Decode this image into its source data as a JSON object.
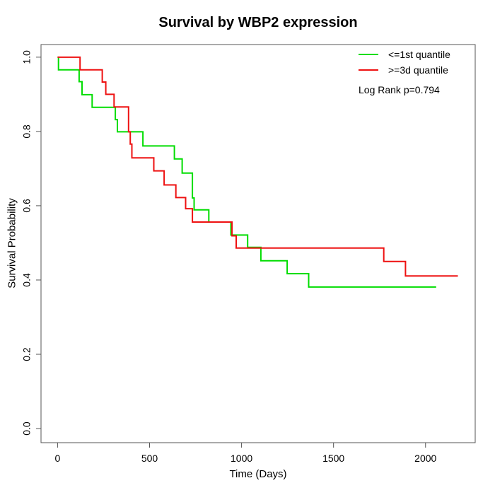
{
  "figure": {
    "background": "#ffffff",
    "axis_color": "#555555",
    "text_color": "#000000"
  },
  "chart_data": {
    "type": "line",
    "subtype": "kaplan-meier-step",
    "title": "Survival by WBP2 expression",
    "xlabel": "Time (Days)",
    "ylabel": "Survival Probability",
    "grid": false,
    "legend_position": "top-right",
    "annotation": "Log Rank p=0.794",
    "x_tick_values": [
      0,
      500,
      1000,
      1500,
      2000
    ],
    "x_tick_labels": [
      "0",
      "500",
      "1000",
      "1500",
      "2000"
    ],
    "y_tick_values": [
      0.0,
      0.2,
      0.4,
      0.6,
      0.8,
      1.0
    ],
    "y_tick_labels": [
      "0.0",
      "0.2",
      "0.4",
      "0.6",
      "0.8",
      "1.0"
    ],
    "xlim": [
      -90,
      2270
    ],
    "ylim": [
      -0.038,
      1.034
    ],
    "series": [
      {
        "name": "<=1st quantile",
        "color": "#00dd00",
        "start": [
          0,
          1.0
        ],
        "steps": [
          [
            5,
            0.966
          ],
          [
            117,
            0.934
          ],
          [
            133,
            0.899
          ],
          [
            188,
            0.865
          ],
          [
            314,
            0.832
          ],
          [
            325,
            0.799
          ],
          [
            464,
            0.761
          ],
          [
            635,
            0.726
          ],
          [
            677,
            0.688
          ],
          [
            733,
            0.621
          ],
          [
            742,
            0.589
          ],
          [
            822,
            0.556
          ],
          [
            942,
            0.521
          ],
          [
            1033,
            0.488
          ],
          [
            1105,
            0.452
          ],
          [
            1248,
            0.417
          ],
          [
            1365,
            0.381
          ]
        ],
        "end_time": 2058,
        "final_probability": 0.381
      },
      {
        "name": ">=3d quantile",
        "color": "#ee1111",
        "start": [
          0,
          1.0
        ],
        "steps": [
          [
            122,
            0.966
          ],
          [
            243,
            0.933
          ],
          [
            262,
            0.9
          ],
          [
            307,
            0.866
          ],
          [
            386,
            0.799
          ],
          [
            395,
            0.766
          ],
          [
            404,
            0.729
          ],
          [
            523,
            0.694
          ],
          [
            579,
            0.656
          ],
          [
            643,
            0.622
          ],
          [
            696,
            0.592
          ],
          [
            733,
            0.556
          ],
          [
            948,
            0.519
          ],
          [
            971,
            0.486
          ],
          [
            1773,
            0.45
          ],
          [
            1891,
            0.411
          ]
        ],
        "end_time": 2176,
        "final_probability": 0.411
      }
    ]
  }
}
